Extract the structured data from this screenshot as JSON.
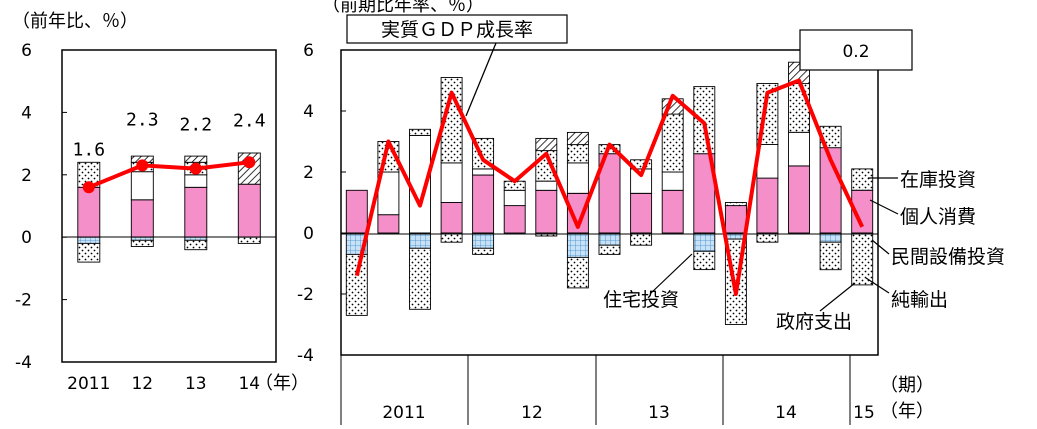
{
  "left_chart": {
    "unit_label": "（前年比、％）",
    "y_ticks": [
      "6",
      "4",
      "2",
      "0",
      "-2",
      "-4"
    ],
    "x_labels": [
      "2011",
      "12",
      "13",
      "14"
    ],
    "year_suffix": "（年）",
    "gdp_labels": [
      "1.6",
      "2.3",
      "2.2",
      "2.4"
    ]
  },
  "right_chart": {
    "unit_label": "（前期比年率、％）",
    "title_box": "実質ＧＤＰ成長率",
    "last_value_box": "0.2",
    "y_ticks": [
      "6",
      "4",
      "2",
      "0",
      "-2",
      "-4"
    ],
    "period_label": "（期）",
    "year_labels": [
      "2011",
      "12",
      "13",
      "14",
      "15"
    ],
    "year_suffix": "（年）",
    "annotations": {
      "inventory": "在庫投資",
      "consumption": "個人消費",
      "capex": "民間設備投資",
      "net_exports": "純輸出",
      "housing": "住宅投資",
      "government": "政府支出"
    }
  },
  "colors": {
    "consumption": "#f48fca",
    "gdp_line": "#ff0000",
    "housing": "#c7e2f7",
    "axis": "#000000"
  },
  "chart_data": [
    {
      "type": "bar",
      "stacked": true,
      "categories": [
        "2011",
        "12",
        "13",
        "14"
      ],
      "ylim": [
        -4,
        6
      ],
      "series": [
        {
          "name": "個人消費",
          "values": [
            1.6,
            1.2,
            1.6,
            1.7
          ]
        },
        {
          "name": "民間設備投資",
          "values": [
            0.0,
            0.9,
            0.4,
            0.0
          ]
        },
        {
          "name": "在庫投資",
          "values": [
            0.8,
            0.3,
            0.4,
            0.0
          ]
        },
        {
          "name": "政府支出",
          "values": [
            0.0,
            0.2,
            0.2,
            1.0
          ]
        },
        {
          "name": "住宅投資",
          "values": [
            -0.2,
            -0.1,
            -0.1,
            0.0
          ]
        },
        {
          "name": "純輸出",
          "values": [
            -0.6,
            -0.2,
            -0.3,
            -0.2
          ]
        }
      ],
      "line": {
        "name": "実質ＧＤＰ成長率",
        "values": [
          1.6,
          2.3,
          2.2,
          2.4
        ]
      }
    },
    {
      "type": "bar",
      "stacked": true,
      "categories": [
        "2011Q1",
        "2011Q2",
        "2011Q3",
        "2011Q4",
        "2012Q1",
        "2012Q2",
        "2012Q3",
        "2012Q4",
        "2013Q1",
        "2013Q2",
        "2013Q3",
        "2013Q4",
        "2014Q1",
        "2014Q2",
        "2014Q3",
        "2014Q4",
        "2015Q1"
      ],
      "ylim": [
        -4,
        6
      ],
      "series": [
        {
          "name": "個人消費",
          "values": [
            1.4,
            0.6,
            0.0,
            1.0,
            1.9,
            0.9,
            1.4,
            1.3,
            2.6,
            1.3,
            1.4,
            2.6,
            0.9,
            1.8,
            2.2,
            2.8,
            1.4
          ]
        },
        {
          "name": "民間設備投資",
          "values": [
            0.0,
            1.4,
            3.2,
            1.3,
            0.2,
            0.5,
            0.3,
            1.0,
            0.0,
            0.8,
            0.6,
            0.0,
            0.0,
            1.1,
            1.1,
            0.0,
            0.0
          ]
        },
        {
          "name": "在庫投資",
          "values": [
            0.0,
            1.0,
            0.2,
            2.8,
            1.0,
            0.3,
            1.0,
            0.6,
            0.3,
            0.3,
            1.9,
            2.2,
            0.1,
            2.0,
            1.6,
            0.7,
            0.7
          ]
        },
        {
          "name": "政府支出",
          "values": [
            0.0,
            0.0,
            0.0,
            0.0,
            0.0,
            0.0,
            0.4,
            0.4,
            0.0,
            0.0,
            0.5,
            0.0,
            0.0,
            0.0,
            0.7,
            0.0,
            0.0
          ]
        },
        {
          "name": "住宅投資",
          "values": [
            -0.7,
            0.0,
            -0.5,
            0.0,
            -0.5,
            0.0,
            0.0,
            -0.8,
            -0.4,
            0.0,
            0.0,
            -0.6,
            -0.2,
            0.0,
            0.0,
            -0.3,
            0.0
          ]
        },
        {
          "name": "純輸出",
          "values": [
            -2.0,
            0.0,
            -2.0,
            -0.3,
            -0.2,
            0.0,
            -0.1,
            -1.0,
            -0.3,
            -0.4,
            0.0,
            -0.6,
            -2.8,
            -0.3,
            0.0,
            -0.9,
            -1.7
          ]
        }
      ],
      "line": {
        "name": "実質ＧＤＰ成長率",
        "values": [
          -1.4,
          3.0,
          0.9,
          4.6,
          2.4,
          1.7,
          2.6,
          0.2,
          2.9,
          1.9,
          4.5,
          3.6,
          -2.0,
          4.6,
          5.0,
          2.4,
          0.2
        ]
      }
    }
  ]
}
